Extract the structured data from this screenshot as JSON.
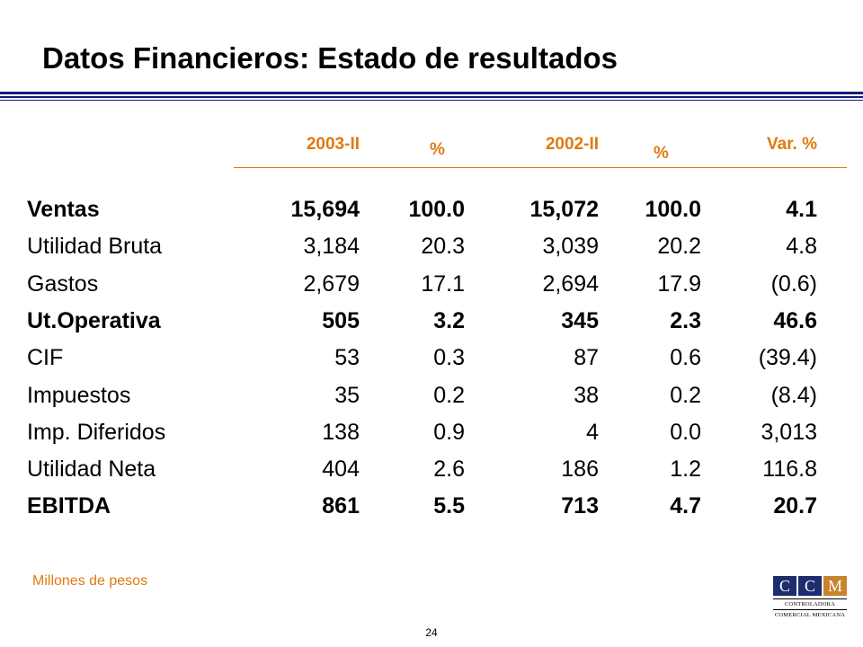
{
  "title": "Datos Financieros:  Estado de resultados",
  "columns": [
    "2003-II",
    "%",
    "2002-II",
    "%",
    "Var. %"
  ],
  "rows": [
    {
      "label": "Ventas",
      "bold": true,
      "values": [
        "15,694",
        "100.0",
        "15,072",
        "100.0",
        "4.1"
      ]
    },
    {
      "label": "Utilidad Bruta",
      "bold": false,
      "values": [
        "3,184",
        "20.3",
        "3,039",
        "20.2",
        "4.8"
      ]
    },
    {
      "label": "Gastos",
      "bold": false,
      "values": [
        "2,679",
        "17.1",
        "2,694",
        "17.9",
        "(0.6)"
      ]
    },
    {
      "label": "Ut.Operativa",
      "bold": true,
      "values": [
        "505",
        "3.2",
        "345",
        "2.3",
        "46.6"
      ]
    },
    {
      "label": "CIF",
      "bold": false,
      "values": [
        "53",
        "0.3",
        "87",
        "0.6",
        "(39.4)"
      ]
    },
    {
      "label": "Impuestos",
      "bold": false,
      "values": [
        "35",
        "0.2",
        "38",
        "0.2",
        "(8.4)"
      ]
    },
    {
      "label": "Imp. Diferidos",
      "bold": false,
      "values": [
        "138",
        "0.9",
        "4",
        "0.0",
        "3,013"
      ]
    },
    {
      "label": "Utilidad Neta",
      "bold": false,
      "values": [
        "404",
        "2.6",
        "186",
        "1.2",
        "116.8"
      ]
    },
    {
      "label": "EBITDA",
      "bold": true,
      "values": [
        "861",
        "5.5",
        "713",
        "4.7",
        "20.7"
      ]
    }
  ],
  "footnote": "Millones de pesos",
  "page_number": "24",
  "logo": {
    "letters": [
      "C",
      "C",
      "M"
    ],
    "line1": "CONTROLADORA",
    "line2": "COMERCIAL MEXICANA"
  },
  "colors": {
    "accent": "#e07a10",
    "rule": "#0d1f7a",
    "logo_blue": "#1d2d6e",
    "logo_gold": "#c8832e"
  }
}
